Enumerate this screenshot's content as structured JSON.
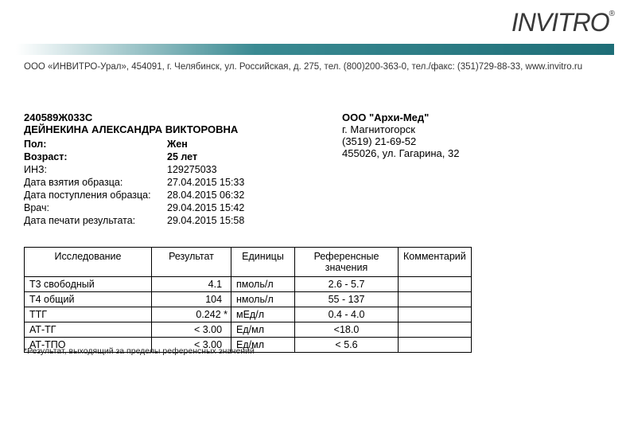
{
  "logo": {
    "text": "INVITRO",
    "reg": "®"
  },
  "contact": "ООО «ИНВИТРО-Урал», 454091, г. Челябинск, ул. Российская, д. 275, тел. (800)200-363-0, тел./факс: (351)729-88-33, www.invitro.ru",
  "clinic": {
    "name": "ООО \"Архи-Мед\"",
    "city": "г. Магнитогорск",
    "phone": "(3519) 21-69-52",
    "address": "455026,  ул. Гагарина, 32"
  },
  "patient": {
    "code": "240589Ж033С",
    "name": "ДЕЙНЕКИНА АЛЕКСАНДРА ВИКТОРОВНА",
    "fields": [
      {
        "k": "Пол:",
        "v": "Жен",
        "bold": true
      },
      {
        "k": "Возраст:",
        "v": "25 лет",
        "bold": true
      },
      {
        "k": "ИНЗ:",
        "v": "129275033",
        "bold": false
      },
      {
        "k": "Дата взятия образца:",
        "v": "27.04.2015 15:33",
        "bold": false
      },
      {
        "k": "Дата поступления образца:",
        "v": "28.04.2015 06:32",
        "bold": false
      },
      {
        "k": "Врач:",
        "v": "29.04.2015 15:42",
        "bold": false
      },
      {
        "k": "Дата печати результата:",
        "v": "29.04.2015 15:58",
        "bold": false
      }
    ]
  },
  "table": {
    "headers": [
      "Исследование",
      "Результат",
      "Единицы",
      "Референсные значения",
      "Комментарий"
    ],
    "rows": [
      {
        "test": "Т3 свободный",
        "result": "4.1  ",
        "units": "пмоль/л",
        "ref": "2.6 - 5.7",
        "comment": ""
      },
      {
        "test": "Т4 общий",
        "result": "104  ",
        "units": "нмоль/л",
        "ref": "55 - 137",
        "comment": ""
      },
      {
        "test": "ТТГ",
        "result": "0.242 *",
        "units": "мЕд/л",
        "ref": "0.4 - 4.0",
        "comment": ""
      },
      {
        "test": "АТ-ТГ",
        "result": "< 3.00  ",
        "units": "Ед/мл",
        "ref": "<18.0",
        "comment": ""
      },
      {
        "test": "АТ-ТПО",
        "result": "< 3.00  ",
        "units": "Ед/мл",
        "ref": "< 5.6",
        "comment": ""
      }
    ]
  },
  "footnote": "*Результат, выходящий за пределы референсных значений",
  "colors": {
    "teal_dark": "#1e6e77",
    "teal_mid": "#3a8a92",
    "text": "#000000",
    "bg": "#ffffff"
  }
}
